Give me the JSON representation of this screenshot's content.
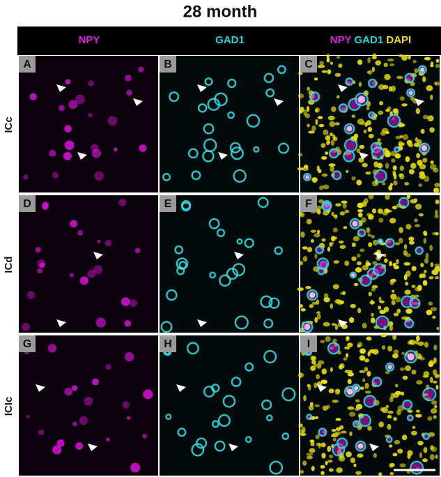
{
  "title": "28 month",
  "columns": [
    [
      "NPY"
    ],
    [
      "GAD1"
    ],
    [
      "NPY",
      "GAD1",
      "DAPI"
    ]
  ],
  "rows": [
    "ICc",
    "ICd",
    "ICIc"
  ],
  "panels": [
    [
      "A",
      "B",
      "C"
    ],
    [
      "D",
      "E",
      "F"
    ],
    [
      "G",
      "H",
      "I"
    ]
  ]
}
